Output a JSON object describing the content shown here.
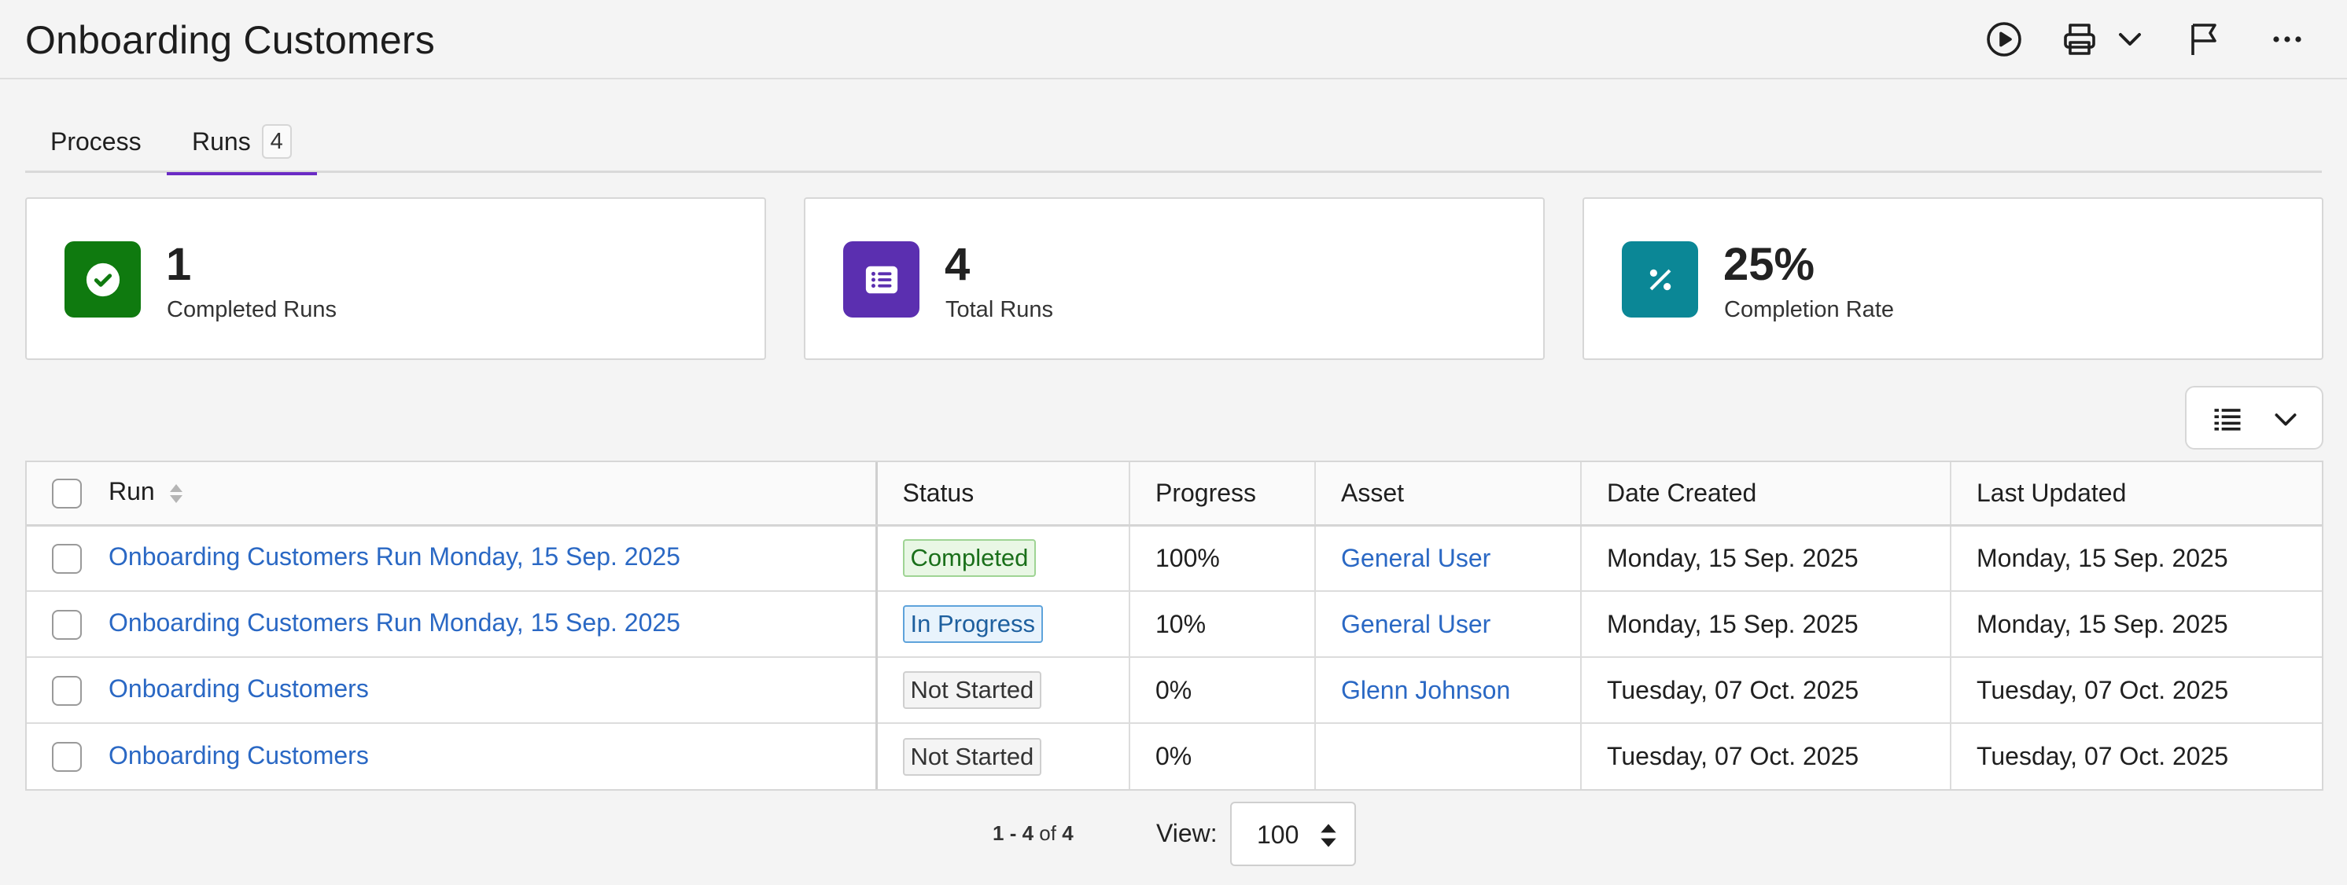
{
  "header": {
    "title": "Onboarding Customers",
    "icons": [
      "play-circle-icon",
      "printer-icon",
      "chevron-down-icon",
      "flag-icon",
      "more-horizontal-icon"
    ]
  },
  "tabs": [
    {
      "label": "Process",
      "active": false
    },
    {
      "label": "Runs",
      "count": "4",
      "active": true
    }
  ],
  "stats": [
    {
      "value": "1",
      "label": "Completed Runs",
      "icon": "check-circle-icon",
      "color": "#0f7a0f"
    },
    {
      "value": "4",
      "label": "Total Runs",
      "icon": "list-icon",
      "color": "#5b2fb0"
    },
    {
      "value": "25%",
      "label": "Completion Rate",
      "icon": "percent-icon",
      "color": "#0b8796"
    }
  ],
  "table": {
    "columns": [
      "Run",
      "Status",
      "Progress",
      "Asset",
      "Date Created",
      "Last Updated"
    ],
    "rows": [
      {
        "run": "Onboarding Customers Run Monday, 15 Sep. 2025",
        "status": "Completed",
        "progress": "100%",
        "asset": "General User",
        "created": "Monday, 15 Sep. 2025",
        "updated": "Monday, 15 Sep. 2025"
      },
      {
        "run": "Onboarding Customers Run Monday, 15 Sep. 2025",
        "status": "In Progress",
        "progress": "10%",
        "asset": "General User",
        "created": "Monday, 15 Sep. 2025",
        "updated": "Monday, 15 Sep. 2025"
      },
      {
        "run": "Onboarding Customers",
        "status": "Not Started",
        "progress": "0%",
        "asset": "Glenn Johnson",
        "created": "Tuesday, 07 Oct. 2025",
        "updated": "Tuesday, 07 Oct. 2025"
      },
      {
        "run": "Onboarding Customers",
        "status": "Not Started",
        "progress": "0%",
        "asset": "",
        "created": "Tuesday, 07 Oct. 2025",
        "updated": "Tuesday, 07 Oct. 2025"
      }
    ]
  },
  "pagination": {
    "range_start": "1",
    "range_sep": " - ",
    "range_end": "4",
    "of_text": " of ",
    "total": "4",
    "view_label": "View:",
    "page_size": "100"
  },
  "colors": {
    "accent": "#6a2bc4",
    "link": "#2a68c4"
  }
}
